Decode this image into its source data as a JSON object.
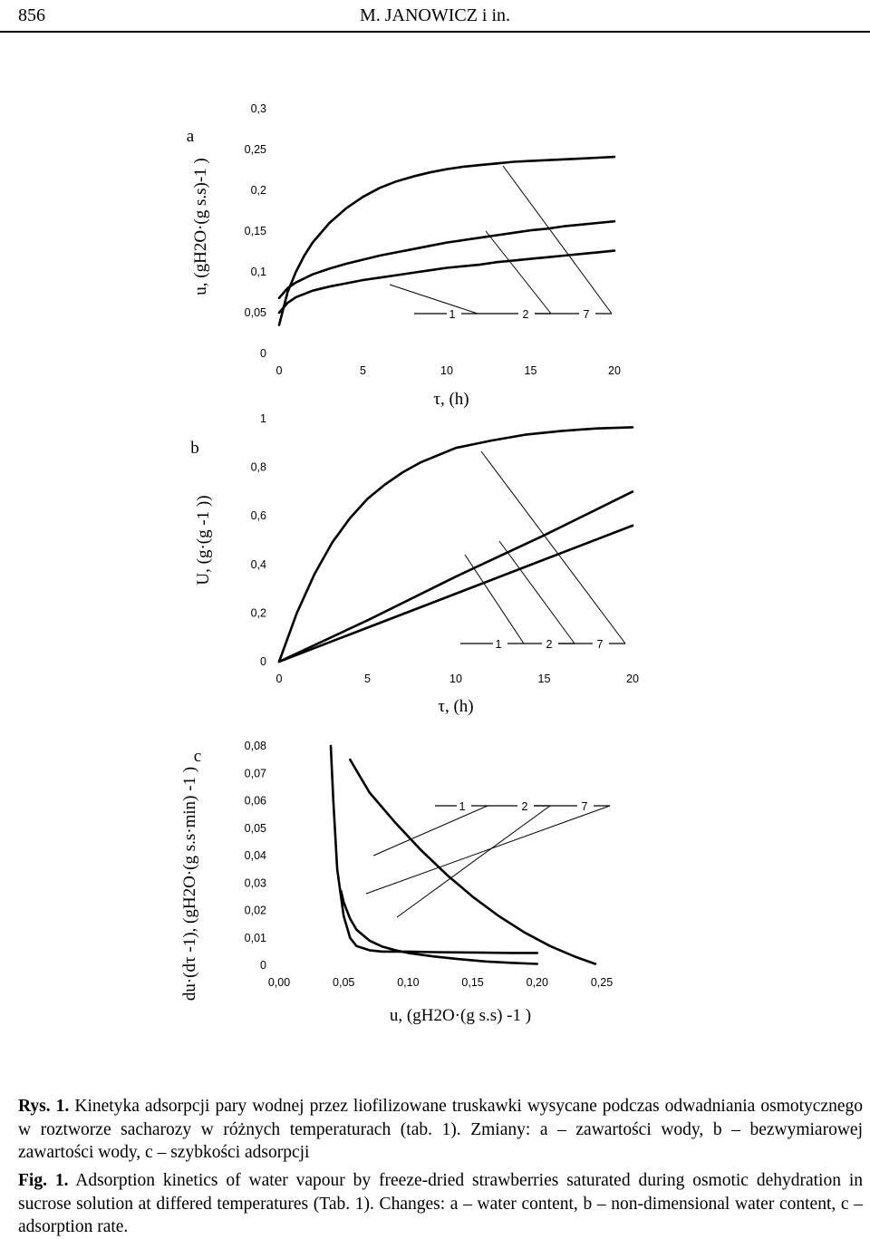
{
  "header": {
    "page_number": "856",
    "running_title": "M. JANOWICZ i in."
  },
  "chart_data": [
    {
      "type": "line",
      "panel_label": "a",
      "ylabel": "u, (gH2O·(g s.s)-1 )",
      "xlabel": "τ, (h)",
      "x_ticks": [
        "0",
        "5",
        "10",
        "15",
        "20"
      ],
      "y_ticks": [
        "0",
        "0,05",
        "0,1",
        "0,15",
        "0,2",
        "0,25",
        "0,3"
      ],
      "xlim": [
        0,
        20
      ],
      "ylim": [
        0,
        0.3
      ],
      "leader_labels": [
        "1",
        "2",
        "7"
      ],
      "series": [
        {
          "name": "1",
          "x": [
            0,
            0.5,
            1,
            2,
            3,
            4,
            5,
            6,
            7,
            8,
            9,
            10,
            11,
            12,
            13,
            14,
            15,
            16,
            17,
            18,
            19,
            20
          ],
          "y": [
            0.05,
            0.062,
            0.069,
            0.077,
            0.082,
            0.086,
            0.09,
            0.093,
            0.096,
            0.099,
            0.102,
            0.105,
            0.107,
            0.109,
            0.112,
            0.114,
            0.116,
            0.118,
            0.12,
            0.122,
            0.124,
            0.126
          ]
        },
        {
          "name": "2",
          "x": [
            0,
            0.5,
            1,
            2,
            3,
            4,
            5,
            6,
            7,
            8,
            9,
            10,
            11,
            12,
            13,
            14,
            15,
            16,
            17,
            18,
            19,
            20
          ],
          "y": [
            0.068,
            0.08,
            0.087,
            0.097,
            0.104,
            0.11,
            0.115,
            0.12,
            0.124,
            0.128,
            0.132,
            0.136,
            0.139,
            0.142,
            0.145,
            0.148,
            0.151,
            0.153,
            0.156,
            0.158,
            0.16,
            0.162
          ]
        },
        {
          "name": "7",
          "x": [
            0,
            0.5,
            1,
            1.5,
            2,
            3,
            4,
            5,
            6,
            7,
            8,
            9,
            10,
            11,
            12,
            13,
            14,
            15,
            16,
            17,
            18,
            19,
            20
          ],
          "y": [
            0.035,
            0.075,
            0.1,
            0.12,
            0.136,
            0.16,
            0.178,
            0.192,
            0.203,
            0.211,
            0.217,
            0.222,
            0.226,
            0.229,
            0.231,
            0.233,
            0.235,
            0.236,
            0.237,
            0.238,
            0.239,
            0.24,
            0.241
          ]
        }
      ]
    },
    {
      "type": "line",
      "panel_label": "b",
      "ylabel": "U, (g·(g -1 ))",
      "xlabel": "τ, (h)",
      "x_ticks": [
        "0",
        "5",
        "10",
        "15",
        "20"
      ],
      "y_ticks": [
        "0",
        "0,2",
        "0,4",
        "0,6",
        "0,8",
        "1"
      ],
      "xlim": [
        0,
        20
      ],
      "ylim": [
        0,
        1
      ],
      "leader_labels": [
        "1",
        "2",
        "7"
      ],
      "series": [
        {
          "name": "1",
          "x": [
            0,
            5,
            10,
            15,
            20
          ],
          "y": [
            0,
            0.14,
            0.28,
            0.42,
            0.56
          ]
        },
        {
          "name": "2",
          "x": [
            0,
            5,
            10,
            15,
            20
          ],
          "y": [
            0,
            0.17,
            0.35,
            0.52,
            0.7
          ]
        },
        {
          "name": "7",
          "x": [
            0,
            1,
            2,
            3,
            4,
            5,
            6,
            7,
            8,
            9,
            10,
            12,
            14,
            16,
            18,
            20
          ],
          "y": [
            0,
            0.2,
            0.36,
            0.49,
            0.59,
            0.67,
            0.73,
            0.78,
            0.82,
            0.85,
            0.88,
            0.91,
            0.935,
            0.95,
            0.96,
            0.965
          ]
        }
      ]
    },
    {
      "type": "line",
      "panel_label": "c",
      "ylabel": "du·(dτ -1), (gH2O·(g s.s·min) -1 )",
      "xlabel": "u, (gH2O·(g s.s) -1 )",
      "x_ticks": [
        "0,00",
        "0,05",
        "0,10",
        "0,15",
        "0,20",
        "0,25"
      ],
      "y_ticks": [
        "0",
        "0,01",
        "0,02",
        "0,03",
        "0,04",
        "0,05",
        "0,06",
        "0,07",
        "0,08"
      ],
      "xlim": [
        0,
        0.25
      ],
      "ylim": [
        0,
        0.08
      ],
      "leader_labels": [
        "1",
        "2",
        "7"
      ],
      "series": [
        {
          "name": "1",
          "x": [
            0.048,
            0.05,
            0.055,
            0.06,
            0.07,
            0.08,
            0.09,
            0.1,
            0.12,
            0.14,
            0.16,
            0.18,
            0.2
          ],
          "y": [
            0.027,
            0.023,
            0.017,
            0.013,
            0.009,
            0.0068,
            0.0055,
            0.0045,
            0.0032,
            0.0022,
            0.0014,
            0.0009,
            0.0005
          ]
        },
        {
          "name": "2",
          "x": [
            0.04,
            0.042,
            0.045,
            0.05,
            0.055,
            0.06,
            0.07,
            0.08,
            0.1,
            0.12,
            0.14,
            0.16,
            0.18,
            0.2
          ],
          "y": [
            0.08,
            0.06,
            0.035,
            0.018,
            0.01,
            0.007,
            0.0055,
            0.005,
            0.005,
            0.0048,
            0.0047,
            0.0046,
            0.0045,
            0.0045
          ]
        },
        {
          "name": "7",
          "x": [
            0.055,
            0.07,
            0.09,
            0.11,
            0.13,
            0.15,
            0.17,
            0.19,
            0.21,
            0.23,
            0.245
          ],
          "y": [
            0.075,
            0.063,
            0.052,
            0.042,
            0.033,
            0.025,
            0.018,
            0.012,
            0.007,
            0.003,
            0.0005
          ]
        }
      ]
    }
  ],
  "caption": {
    "pl_label": "Rys. 1.",
    "pl_text": "Kinetyka adsorpcji pary wodnej przez liofilizowane truskawki wysycane podczas odwadniania osmotycznego w roztworze sacharozy w różnych temperaturach (tab. 1). Zmiany: a – zawartości wody, b – bezwymiarowej zawartości wody, c – szybkości adsorpcji",
    "en_label": "Fig. 1.",
    "en_text": "Adsorption kinetics of water vapour by freeze-dried strawberries saturated during osmotic dehydration in sucrose solution at differed temperatures (Tab. 1). Changes: a – water content, b – non-dimensional water content, c – adsorption rate."
  }
}
